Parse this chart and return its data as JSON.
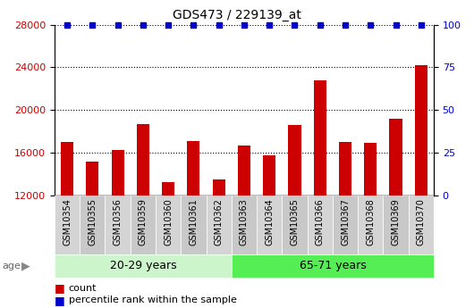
{
  "title": "GDS473 / 229139_at",
  "categories": [
    "GSM10354",
    "GSM10355",
    "GSM10356",
    "GSM10359",
    "GSM10360",
    "GSM10361",
    "GSM10362",
    "GSM10363",
    "GSM10364",
    "GSM10365",
    "GSM10366",
    "GSM10367",
    "GSM10368",
    "GSM10369",
    "GSM10370"
  ],
  "counts": [
    17000,
    15200,
    16300,
    18700,
    13300,
    17100,
    13500,
    16700,
    15800,
    18600,
    22800,
    17000,
    16900,
    19200,
    24200
  ],
  "percentile_ranks": [
    100,
    100,
    100,
    100,
    100,
    100,
    100,
    100,
    100,
    100,
    100,
    100,
    100,
    100,
    100
  ],
  "group1_label": "20-29 years",
  "group2_label": "65-71 years",
  "group1_count": 7,
  "group2_count": 8,
  "ylim_left": [
    12000,
    28000
  ],
  "ylim_right": [
    0,
    100
  ],
  "yticks_left": [
    12000,
    16000,
    20000,
    24000,
    28000
  ],
  "yticks_right": [
    0,
    25,
    50,
    75,
    100
  ],
  "bar_color": "#cc0000",
  "dot_color": "#0000cc",
  "bg_color_chart": "#ffffff",
  "bg_color_xtick1": "#d0d0d0",
  "bg_color_xtick2": "#c0c0c0",
  "bg_color_group1": "#ccf5cc",
  "bg_color_group2": "#55ee55",
  "grid_color": "#000000",
  "legend_count_label": "count",
  "legend_pct_label": "percentile rank within the sample"
}
